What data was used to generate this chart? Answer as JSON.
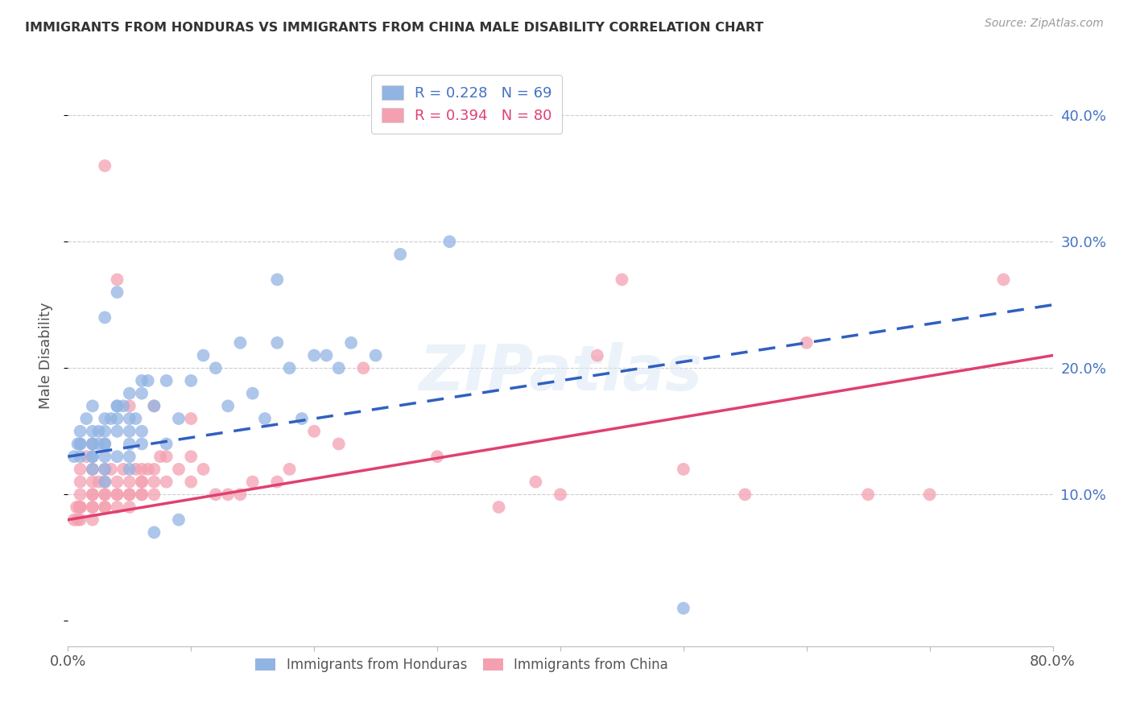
{
  "title": "IMMIGRANTS FROM HONDURAS VS IMMIGRANTS FROM CHINA MALE DISABILITY CORRELATION CHART",
  "source": "Source: ZipAtlas.com",
  "ylabel": "Male Disability",
  "xlim": [
    0.0,
    0.8
  ],
  "ylim": [
    -0.02,
    0.44
  ],
  "honduras_color": "#92b4e3",
  "china_color": "#f4a0b0",
  "honduras_R": 0.228,
  "honduras_N": 69,
  "china_R": 0.394,
  "china_N": 80,
  "honduras_line_color": "#3060c0",
  "china_line_color": "#e04070",
  "honduras_line_start_y": 0.13,
  "honduras_line_end_y": 0.25,
  "china_line_start_y": 0.08,
  "china_line_end_y": 0.21,
  "honduras_x": [
    0.005,
    0.008,
    0.01,
    0.01,
    0.01,
    0.01,
    0.015,
    0.02,
    0.02,
    0.02,
    0.02,
    0.02,
    0.02,
    0.02,
    0.025,
    0.025,
    0.03,
    0.03,
    0.03,
    0.03,
    0.03,
    0.03,
    0.03,
    0.03,
    0.035,
    0.04,
    0.04,
    0.04,
    0.04,
    0.04,
    0.04,
    0.045,
    0.05,
    0.05,
    0.05,
    0.05,
    0.05,
    0.05,
    0.055,
    0.06,
    0.06,
    0.06,
    0.06,
    0.065,
    0.07,
    0.07,
    0.08,
    0.08,
    0.09,
    0.09,
    0.1,
    0.11,
    0.12,
    0.13,
    0.14,
    0.15,
    0.16,
    0.17,
    0.17,
    0.18,
    0.19,
    0.2,
    0.21,
    0.22,
    0.23,
    0.25,
    0.27,
    0.31,
    0.5
  ],
  "honduras_y": [
    0.13,
    0.14,
    0.13,
    0.14,
    0.14,
    0.15,
    0.16,
    0.12,
    0.13,
    0.13,
    0.14,
    0.14,
    0.15,
    0.17,
    0.14,
    0.15,
    0.11,
    0.12,
    0.13,
    0.14,
    0.14,
    0.15,
    0.16,
    0.24,
    0.16,
    0.13,
    0.15,
    0.16,
    0.17,
    0.17,
    0.26,
    0.17,
    0.12,
    0.13,
    0.14,
    0.15,
    0.16,
    0.18,
    0.16,
    0.14,
    0.15,
    0.18,
    0.19,
    0.19,
    0.07,
    0.17,
    0.14,
    0.19,
    0.08,
    0.16,
    0.19,
    0.21,
    0.2,
    0.17,
    0.22,
    0.18,
    0.16,
    0.22,
    0.27,
    0.2,
    0.16,
    0.21,
    0.21,
    0.2,
    0.22,
    0.21,
    0.29,
    0.3,
    0.01
  ],
  "china_x": [
    0.005,
    0.007,
    0.008,
    0.009,
    0.01,
    0.01,
    0.01,
    0.01,
    0.01,
    0.01,
    0.01,
    0.015,
    0.02,
    0.02,
    0.02,
    0.02,
    0.02,
    0.02,
    0.02,
    0.02,
    0.025,
    0.03,
    0.03,
    0.03,
    0.03,
    0.03,
    0.03,
    0.03,
    0.035,
    0.04,
    0.04,
    0.04,
    0.04,
    0.04,
    0.045,
    0.05,
    0.05,
    0.05,
    0.05,
    0.05,
    0.055,
    0.06,
    0.06,
    0.06,
    0.06,
    0.06,
    0.065,
    0.07,
    0.07,
    0.07,
    0.07,
    0.075,
    0.08,
    0.08,
    0.09,
    0.1,
    0.1,
    0.1,
    0.11,
    0.12,
    0.13,
    0.14,
    0.15,
    0.17,
    0.18,
    0.2,
    0.22,
    0.24,
    0.3,
    0.35,
    0.38,
    0.4,
    0.43,
    0.45,
    0.5,
    0.55,
    0.6,
    0.65,
    0.7,
    0.76
  ],
  "china_y": [
    0.08,
    0.09,
    0.08,
    0.09,
    0.08,
    0.09,
    0.09,
    0.09,
    0.1,
    0.11,
    0.12,
    0.13,
    0.08,
    0.09,
    0.09,
    0.1,
    0.1,
    0.11,
    0.12,
    0.14,
    0.11,
    0.09,
    0.09,
    0.1,
    0.1,
    0.11,
    0.12,
    0.36,
    0.12,
    0.09,
    0.1,
    0.1,
    0.11,
    0.27,
    0.12,
    0.09,
    0.1,
    0.1,
    0.11,
    0.17,
    0.12,
    0.1,
    0.1,
    0.11,
    0.11,
    0.12,
    0.12,
    0.1,
    0.11,
    0.12,
    0.17,
    0.13,
    0.11,
    0.13,
    0.12,
    0.11,
    0.13,
    0.16,
    0.12,
    0.1,
    0.1,
    0.1,
    0.11,
    0.11,
    0.12,
    0.15,
    0.14,
    0.2,
    0.13,
    0.09,
    0.11,
    0.1,
    0.21,
    0.27,
    0.12,
    0.1,
    0.22,
    0.1,
    0.1,
    0.27
  ]
}
